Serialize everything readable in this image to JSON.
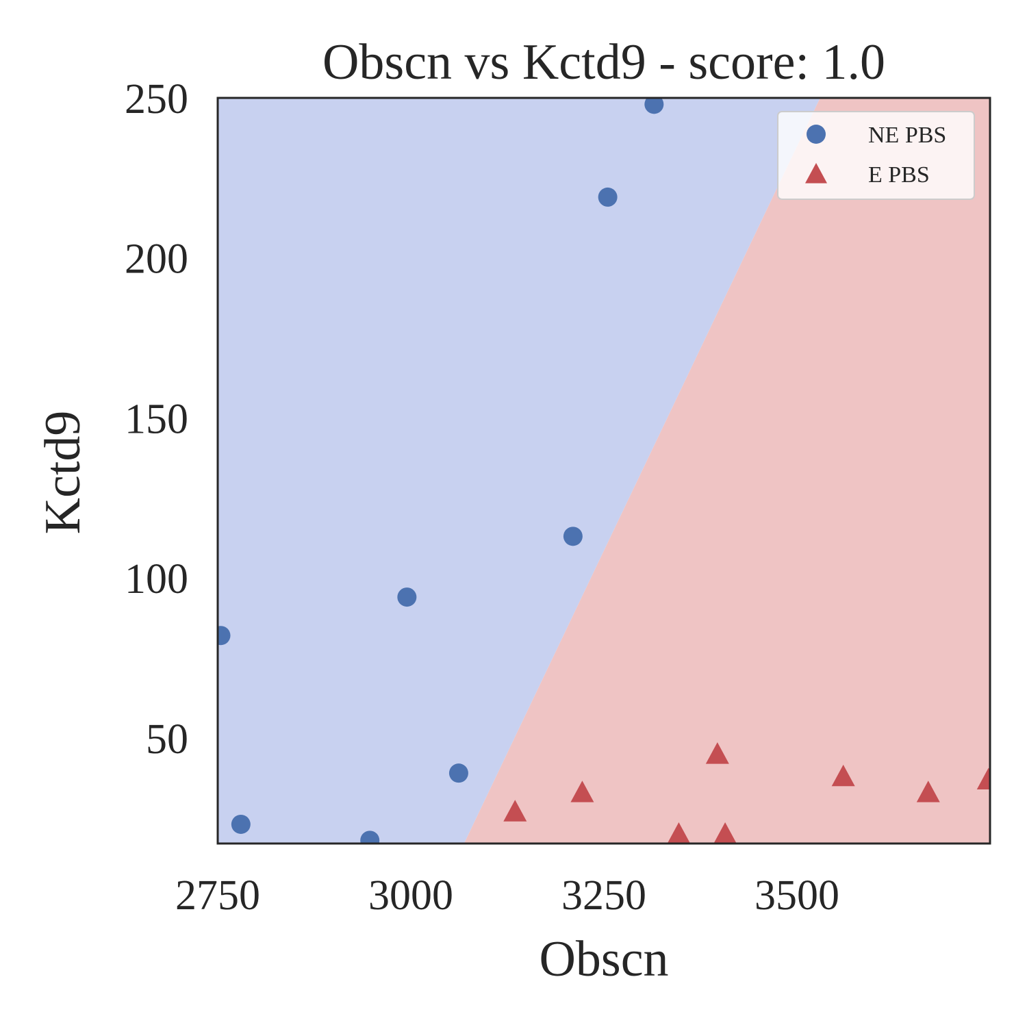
{
  "chart_data": {
    "type": "scatter",
    "title": "Obscn vs Kctd9 - score: 1.0",
    "xlabel": "Obscn",
    "ylabel": "Kctd9",
    "xlim": [
      2750,
      3750
    ],
    "ylim": [
      17,
      250
    ],
    "xticks": [
      2750,
      3000,
      3250,
      3500
    ],
    "yticks": [
      50,
      100,
      150,
      200,
      250
    ],
    "grid": false,
    "legend_position": "top-right",
    "decision_boundary": {
      "points": [
        [
          3069,
          17
        ],
        [
          3530,
          250
        ]
      ],
      "left_region_color": "#c8d1f0",
      "right_region_color": "#efc4c4"
    },
    "series": [
      {
        "name": "NE PBS",
        "marker": "circle",
        "color": "#4c72b0",
        "points": [
          [
            2754,
            82
          ],
          [
            2780,
            23
          ],
          [
            2947,
            18
          ],
          [
            2995,
            94
          ],
          [
            3062,
            39
          ],
          [
            3210,
            113
          ],
          [
            3255,
            219
          ],
          [
            3315,
            248
          ]
        ]
      },
      {
        "name": "E PBS",
        "marker": "triangle",
        "color": "#c44e52",
        "points": [
          [
            3135,
            27
          ],
          [
            3222,
            33
          ],
          [
            3347,
            20
          ],
          [
            3397,
            45
          ],
          [
            3407,
            20
          ],
          [
            3560,
            38
          ],
          [
            3670,
            33
          ],
          [
            3748,
            37
          ]
        ]
      }
    ]
  }
}
